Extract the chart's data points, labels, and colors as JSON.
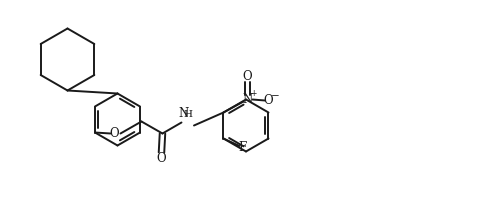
{
  "background_color": "#ffffff",
  "line_color": "#1a1a1a",
  "line_width": 1.4,
  "text_color": "#1a1a1a",
  "font_size": 7.5,
  "fig_width": 5.01,
  "fig_height": 2.12,
  "dpi": 100,
  "xlim": [
    0,
    10.02
  ],
  "ylim": [
    0,
    4.24
  ]
}
